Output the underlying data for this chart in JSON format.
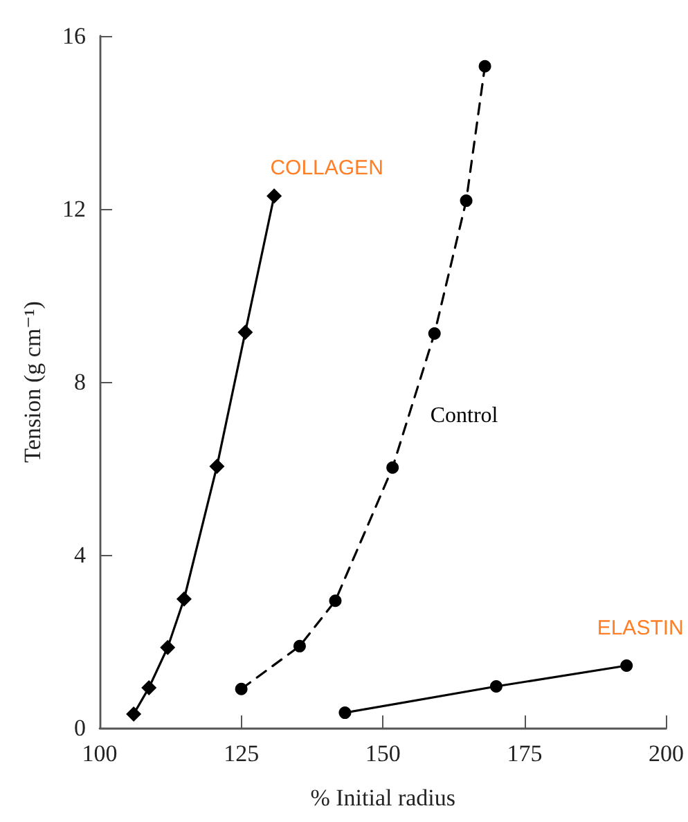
{
  "chart_data": {
    "type": "line",
    "xlabel": "% Initial radius",
    "ylabel": "Tension (g cm⁻¹)",
    "xlim": [
      100,
      200
    ],
    "xticks": [
      100,
      125,
      150,
      175,
      200
    ],
    "ylim": [
      0,
      16
    ],
    "yticks": [
      0,
      4,
      8,
      12,
      16
    ],
    "grid": false,
    "legend": false,
    "series": [
      {
        "name": "COLLAGEN",
        "color": "#000000",
        "marker": "diamond",
        "line_style": "solid",
        "x": [
          106,
          108.7,
          112,
          114.9,
          120.7,
          125.7,
          130.8
        ],
        "values": [
          0.32,
          0.93,
          1.86,
          2.98,
          6.05,
          9.15,
          12.3
        ]
      },
      {
        "name": "Control",
        "color": "#000000",
        "marker": "circle",
        "line_style": "dashed",
        "x": [
          125,
          135.3,
          141.6,
          151.7,
          159.1,
          164.7,
          168
        ],
        "values": [
          0.9,
          1.89,
          2.94,
          6.02,
          9.12,
          12.19,
          15.3
        ]
      },
      {
        "name": "ELASTIN",
        "color": "#000000",
        "marker": "circle",
        "line_style": "solid",
        "x": [
          143.3,
          170,
          193
        ],
        "values": [
          0.35,
          0.96,
          1.44
        ]
      }
    ]
  }
}
